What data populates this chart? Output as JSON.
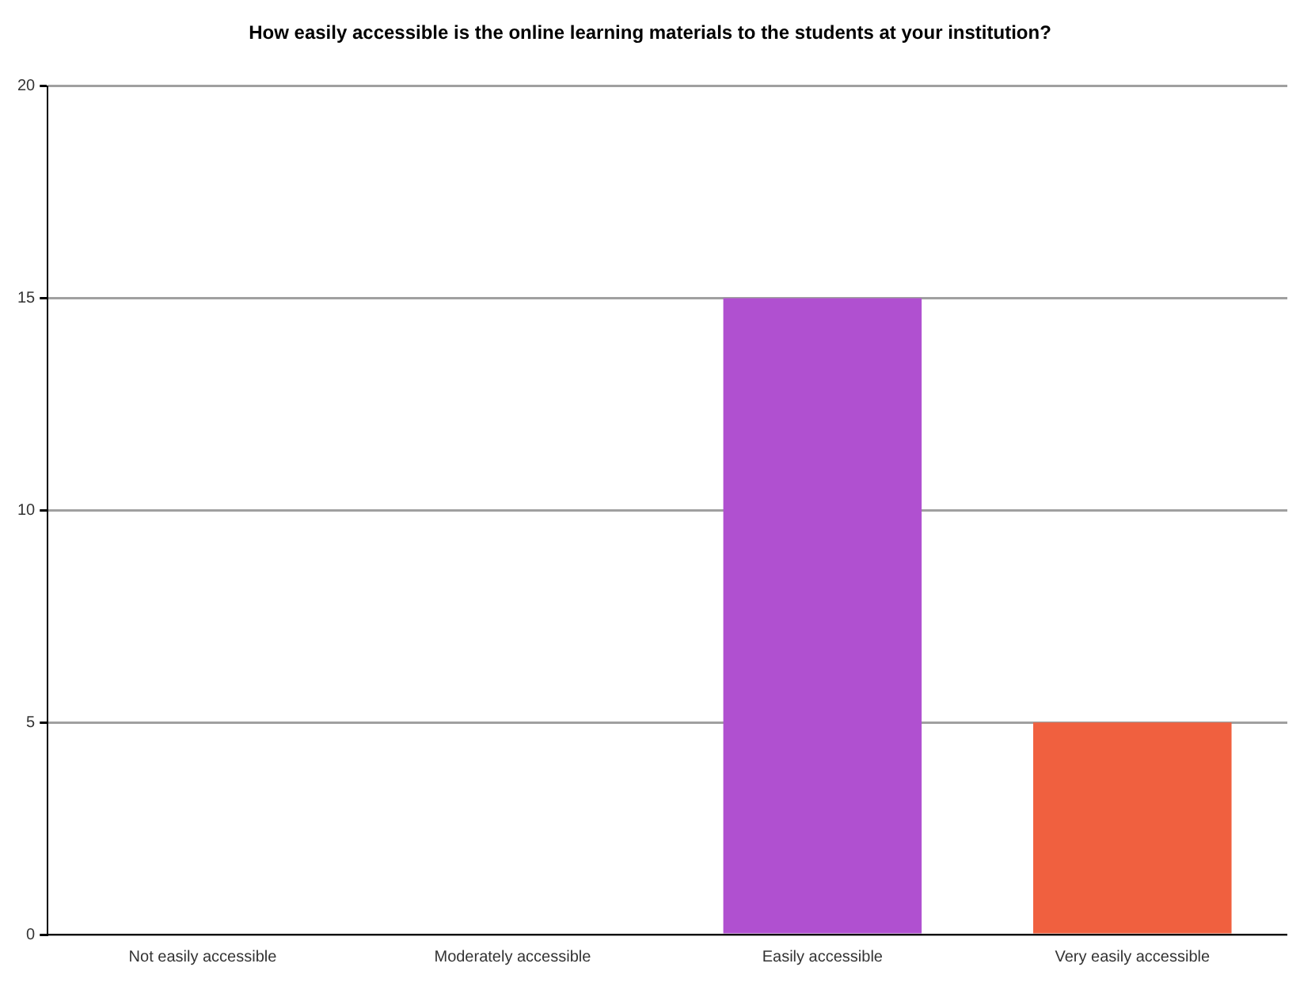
{
  "chart_data": {
    "type": "bar",
    "title": "How easily accessible is the online learning materials to the students at your institution?",
    "categories": [
      "Not easily accessible",
      "Moderately accessible",
      "Easily accessible",
      "Very easily accessible"
    ],
    "values": [
      0,
      0,
      15,
      5
    ],
    "colors": [
      "#4f81bd",
      "#9bbb59",
      "#b050d0",
      "#f0603f"
    ],
    "ylim": [
      0,
      20
    ],
    "yticks": [
      0,
      5,
      10,
      15,
      20
    ],
    "grid": "y",
    "legend": false
  }
}
